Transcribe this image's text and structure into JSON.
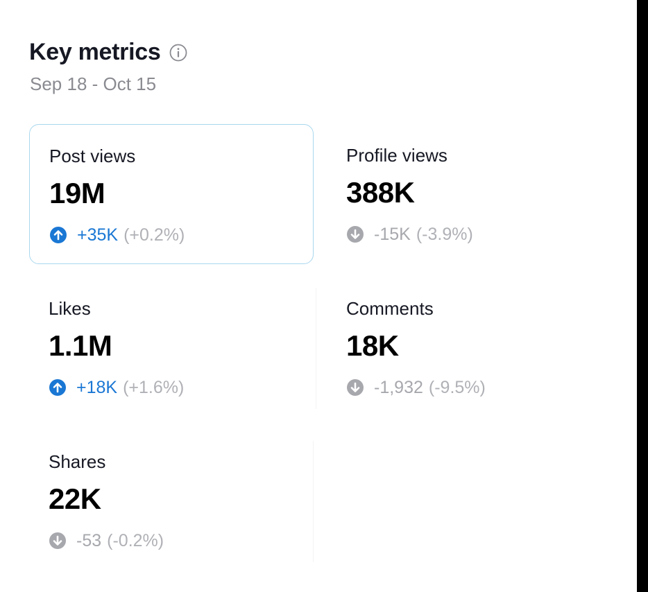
{
  "header": {
    "title": "Key metrics",
    "date_range": "Sep 18 - Oct 15"
  },
  "colors": {
    "up": "#1a77d4",
    "down": "#a7a8ad",
    "selected_border": "#a9d7ee"
  },
  "metrics": [
    {
      "label": "Post views",
      "value": "19M",
      "delta": "+35K",
      "percent": "(+0.2%)",
      "trend": "up",
      "selected": true,
      "icon": "arrow-up-circle-icon"
    },
    {
      "label": "Profile views",
      "value": "388K",
      "delta": "-15K",
      "percent": "(-3.9%)",
      "trend": "down",
      "selected": false,
      "icon": "arrow-down-circle-icon"
    },
    {
      "label": "Likes",
      "value": "1.1M",
      "delta": "+18K",
      "percent": "(+1.6%)",
      "trend": "up",
      "selected": false,
      "icon": "arrow-up-circle-icon"
    },
    {
      "label": "Comments",
      "value": "18K",
      "delta": "-1,932",
      "percent": "(-9.5%)",
      "trend": "down",
      "selected": false,
      "icon": "arrow-down-circle-icon"
    },
    {
      "label": "Shares",
      "value": "22K",
      "delta": "-53",
      "percent": "(-0.2%)",
      "trend": "down",
      "selected": false,
      "icon": "arrow-down-circle-icon"
    }
  ]
}
